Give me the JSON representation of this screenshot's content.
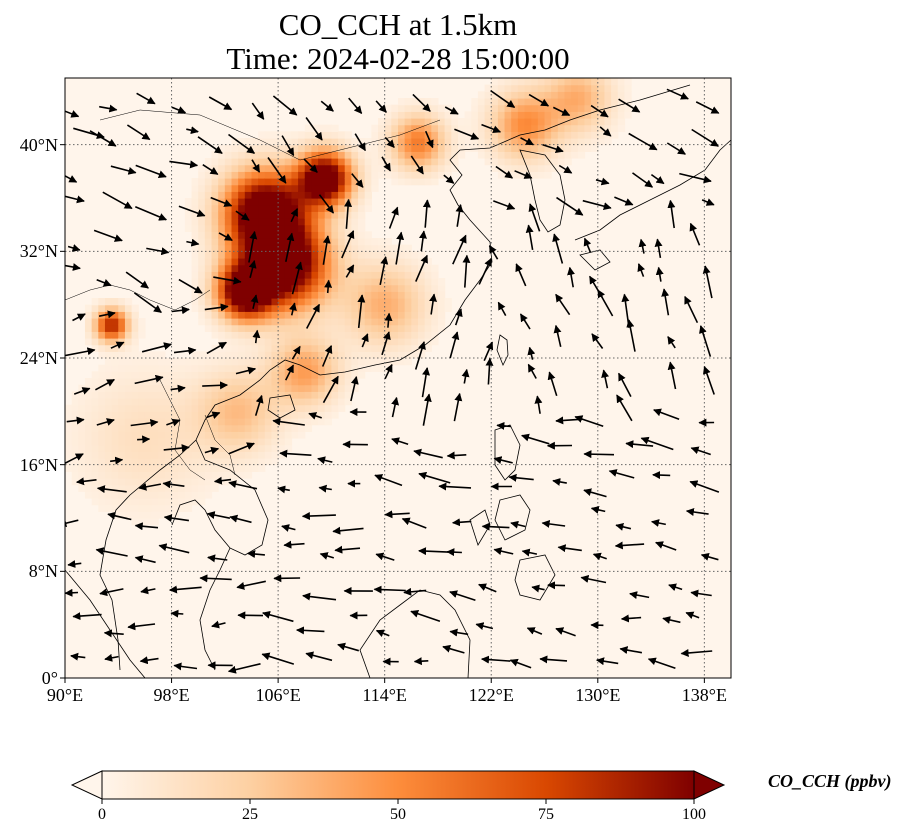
{
  "title": {
    "line1": "CO_CCH at 1.5km",
    "line2": "Time: 2024-02-28 15:00:00"
  },
  "axes": {
    "x_ticks": [
      "90°E",
      "98°E",
      "106°E",
      "114°E",
      "122°E",
      "130°E",
      "138°E"
    ],
    "y_ticks": [
      "40°N",
      "32°N",
      "24°N",
      "16°N",
      "8°N",
      "0°"
    ],
    "lon_range": [
      90,
      140
    ],
    "lat_range": [
      0,
      45
    ],
    "grid": "dotted"
  },
  "colorbar": {
    "label": "CO_CCH (ppbv)",
    "ticks": [
      "0",
      "25",
      "50",
      "75",
      "100"
    ],
    "range": [
      0,
      100
    ],
    "extend": "both",
    "colormap": [
      "#fff5eb",
      "#fdd0a2",
      "#fd8d3c",
      "#d94801",
      "#7f0000"
    ]
  },
  "field_hotspots": [
    {
      "lon": 106.5,
      "lat": 31.0,
      "value": 100,
      "spread": 3.2
    },
    {
      "lon": 105.0,
      "lat": 35.0,
      "value": 100,
      "spread": 3.0
    },
    {
      "lon": 109.5,
      "lat": 37.5,
      "value": 100,
      "spread": 2.0
    },
    {
      "lon": 103.5,
      "lat": 29.0,
      "value": 95,
      "spread": 2.0
    },
    {
      "lon": 93.5,
      "lat": 26.5,
      "value": 70,
      "spread": 1.2
    },
    {
      "lon": 116.5,
      "lat": 40.2,
      "value": 45,
      "spread": 2.0
    },
    {
      "lon": 124.5,
      "lat": 41.5,
      "value": 40,
      "spread": 2.5
    },
    {
      "lon": 128.5,
      "lat": 43.5,
      "value": 30,
      "spread": 2.5
    },
    {
      "lon": 103.0,
      "lat": 20.0,
      "value": 25,
      "spread": 3.0
    },
    {
      "lon": 108.0,
      "lat": 23.0,
      "value": 35,
      "spread": 2.5
    },
    {
      "lon": 114.0,
      "lat": 28.0,
      "value": 30,
      "spread": 3.0
    },
    {
      "lon": 96.0,
      "lat": 18.0,
      "value": 12,
      "spread": 5.0
    }
  ],
  "wind_regions": [
    {
      "lon_min": 90,
      "lon_max": 104,
      "lat_min": 28,
      "lat_max": 45,
      "u": 1.0,
      "v": -0.4
    },
    {
      "lon_min": 104,
      "lon_max": 118,
      "lat_min": 35,
      "lat_max": 45,
      "u": 0.6,
      "v": -0.8
    },
    {
      "lon_min": 118,
      "lon_max": 140,
      "lat_min": 35,
      "lat_max": 45,
      "u": 0.8,
      "v": -0.4
    },
    {
      "lon_min": 104,
      "lon_max": 122,
      "lat_min": 20,
      "lat_max": 35,
      "u": 0.3,
      "v": 1.0
    },
    {
      "lon_min": 122,
      "lon_max": 140,
      "lat_min": 20,
      "lat_max": 35,
      "u": -0.4,
      "v": 1.0
    },
    {
      "lon_min": 90,
      "lon_max": 104,
      "lat_min": 16,
      "lat_max": 28,
      "u": 1.0,
      "v": 0.3
    },
    {
      "lon_min": 104,
      "lon_max": 140,
      "lat_min": 0,
      "lat_max": 20,
      "u": -1.0,
      "v": 0.15
    },
    {
      "lon_min": 90,
      "lon_max": 104,
      "lat_min": 0,
      "lat_max": 16,
      "u": -1.0,
      "v": 0.0
    }
  ]
}
